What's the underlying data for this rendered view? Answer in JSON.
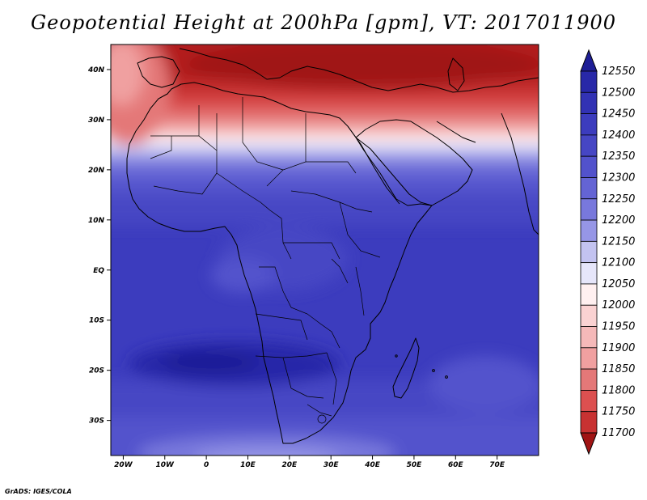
{
  "title": "Geopotential Height at 200hPa [gpm], VT: 2017011900",
  "credit": "GrADS: IGES/COLA",
  "map": {
    "lon_range": [
      -23,
      80
    ],
    "lat_range": [
      -37,
      45
    ],
    "lon_ticks": [
      {
        "value": -20,
        "label": "20W"
      },
      {
        "value": -10,
        "label": "10W"
      },
      {
        "value": 0,
        "label": "0"
      },
      {
        "value": 10,
        "label": "10E"
      },
      {
        "value": 20,
        "label": "20E"
      },
      {
        "value": 30,
        "label": "30E"
      },
      {
        "value": 40,
        "label": "40E"
      },
      {
        "value": 50,
        "label": "50E"
      },
      {
        "value": 60,
        "label": "60E"
      },
      {
        "value": 70,
        "label": "70E"
      }
    ],
    "lat_ticks": [
      {
        "value": 40,
        "label": "40N"
      },
      {
        "value": 30,
        "label": "30N"
      },
      {
        "value": 20,
        "label": "20N"
      },
      {
        "value": 10,
        "label": "10N"
      },
      {
        "value": 0,
        "label": "EQ"
      },
      {
        "value": -10,
        "label": "10S"
      },
      {
        "value": -20,
        "label": "20S"
      },
      {
        "value": -30,
        "label": "30S"
      }
    ]
  },
  "colorbar": {
    "levels": [
      12550,
      12500,
      12450,
      12400,
      12350,
      12300,
      12250,
      12200,
      12150,
      12100,
      12050,
      12000,
      11950,
      11900,
      11850,
      11800,
      11750,
      11700
    ],
    "colors": [
      "#1e1e96",
      "#2828a8",
      "#3232b4",
      "#3c3cbe",
      "#4646c4",
      "#5252cc",
      "#6464d4",
      "#7878dc",
      "#9696e6",
      "#c3c3f0",
      "#e6e6fa",
      "#fff0f0",
      "#fad2d2",
      "#f5b9b9",
      "#f0a0a0",
      "#e47878",
      "#dc5050",
      "#c83232",
      "#b41e1e",
      "#a01414"
    ],
    "top_arrow_color": "#1e1e96",
    "bottom_arrow_color": "#a01414"
  }
}
